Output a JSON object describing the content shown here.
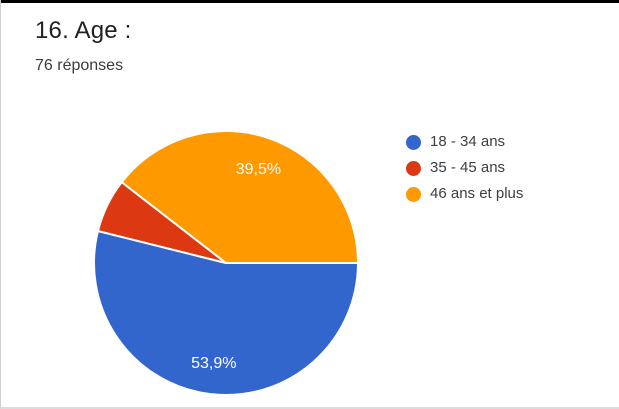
{
  "header": {
    "title": "16. Age :",
    "subtitle": "76 réponses"
  },
  "chart_data": {
    "type": "pie",
    "title": "16. Age :",
    "responses_count": 76,
    "categories": [
      "18 - 34 ans",
      "35 - 45 ans",
      "46 ans et plus"
    ],
    "values": [
      53.9,
      6.6,
      39.5
    ],
    "slice_labels": [
      "53,9%",
      "",
      "39,5%"
    ],
    "colors": [
      "#3366cc",
      "#dc3912",
      "#ff9900"
    ],
    "separator_color": "#ffffff",
    "start_angle_deg": 0,
    "direction": "clockwise",
    "legend_position": "right"
  }
}
